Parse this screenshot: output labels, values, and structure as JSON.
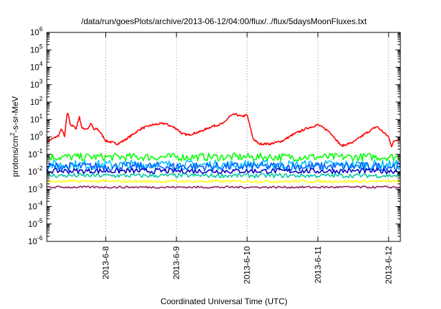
{
  "chart_data": {
    "type": "line",
    "title": "/data/run/goesPlots/archive/2013-06-12/04:00/flux/../flux/5daysMoonFluxes.txt",
    "xlabel": "Coordinated Universal Time (UTC)",
    "ylabel": {
      "pre": "protons/cm",
      "sup": "2",
      "post": "-s-sr-MeV"
    },
    "yscale": "log",
    "ylim": [
      1e-06,
      1000000.0
    ],
    "y_ticks": [
      {
        "base": "10",
        "exp": "-6"
      },
      {
        "base": "10",
        "exp": "-5"
      },
      {
        "base": "10",
        "exp": "-4"
      },
      {
        "base": "10",
        "exp": "-3"
      },
      {
        "base": "10",
        "exp": "-2"
      },
      {
        "base": "10",
        "exp": "-1"
      },
      {
        "base": "10",
        "exp": "0"
      },
      {
        "base": "10",
        "exp": "1"
      },
      {
        "base": "10",
        "exp": "2"
      },
      {
        "base": "10",
        "exp": "3"
      },
      {
        "base": "10",
        "exp": "4"
      },
      {
        "base": "10",
        "exp": "5"
      },
      {
        "base": "10",
        "exp": "6"
      }
    ],
    "x_range": [
      "2013-06-07 04:00",
      "2013-06-12 04:00"
    ],
    "x_ticks": [
      "2013-6-8",
      "2013-6-9",
      "2013-6-10",
      "2013-6-11",
      "2013-6-12"
    ],
    "x_tick_dates": [
      "2013-06-08",
      "2013-06-09",
      "2013-06-10",
      "2013-06-11",
      "2013-06-12"
    ],
    "grid": "vertical dotted at day ticks",
    "series": [
      {
        "color": "#ff0000",
        "x": [
          "2013-06-07 04:00",
          "2013-06-07 06:00",
          "2013-06-07 08:00",
          "2013-06-07 09:00",
          "2013-06-07 10:00",
          "2013-06-07 11:00",
          "2013-06-07 12:00",
          "2013-06-07 13:00",
          "2013-06-07 14:00",
          "2013-06-07 15:00",
          "2013-06-07 16:00",
          "2013-06-07 18:00",
          "2013-06-07 19:00",
          "2013-06-07 20:00",
          "2013-06-07 21:00",
          "2013-06-07 22:00",
          "2013-06-08 00:00",
          "2013-06-08 04:00",
          "2013-06-08 06:00",
          "2013-06-08 08:00",
          "2013-06-08 12:00",
          "2013-06-08 16:00",
          "2013-06-08 20:00",
          "2013-06-09 00:00",
          "2013-06-09 02:00",
          "2013-06-09 04:00",
          "2013-06-09 08:00",
          "2013-06-09 12:00",
          "2013-06-09 16:00",
          "2013-06-09 18:00",
          "2013-06-09 20:00",
          "2013-06-09 22:00",
          "2013-06-10 00:00",
          "2013-06-10 02:00",
          "2013-06-10 04:00",
          "2013-06-10 08:00",
          "2013-06-10 12:00",
          "2013-06-10 16:00",
          "2013-06-10 20:00",
          "2013-06-11 00:00",
          "2013-06-11 04:00",
          "2013-06-11 08:00",
          "2013-06-11 12:00",
          "2013-06-11 16:00",
          "2013-06-11 20:00",
          "2013-06-12 00:00",
          "2013-06-12 01:00",
          "2013-06-12 02:00",
          "2013-06-12 04:00"
        ],
        "y": [
          0.5,
          0.8,
          1.2,
          3,
          1,
          30,
          5,
          4,
          3,
          15,
          3,
          3,
          6,
          2.5,
          3,
          2,
          0.6,
          0.4,
          0.6,
          1,
          3,
          5,
          6,
          3,
          1.5,
          1.3,
          2,
          4,
          6,
          15,
          20,
          15,
          18,
          0.8,
          0.4,
          0.4,
          0.6,
          1.5,
          3,
          5,
          2,
          0.3,
          0.5,
          1.5,
          4,
          1,
          0.3,
          0.6,
          0.8
        ]
      },
      {
        "color": "#00ff00",
        "x": [
          "2013-06-07 04:00",
          "2013-06-12 04:00"
        ],
        "y": [
          0.07,
          0.07
        ],
        "jitter": 0.45
      },
      {
        "color": "#00c0ff",
        "x": [
          "2013-06-07 04:00",
          "2013-06-12 04:00"
        ],
        "y": [
          0.025,
          0.025
        ],
        "jitter": 0.55
      },
      {
        "color": "#0060ff",
        "x": [
          "2013-06-07 04:00",
          "2013-06-12 04:00"
        ],
        "y": [
          0.02,
          0.02
        ],
        "jitter": 0.5
      },
      {
        "color": "#0000c0",
        "x": [
          "2013-06-07 04:00",
          "2013-06-12 04:00"
        ],
        "y": [
          0.011,
          0.011
        ],
        "jitter": 0.3
      },
      {
        "color": "#00c8a0",
        "x": [
          "2013-06-07 04:00",
          "2013-06-12 04:00"
        ],
        "y": [
          0.006,
          0.006
        ],
        "jitter": 0.25
      },
      {
        "color": "#ffff00",
        "x": [
          "2013-06-07 04:00",
          "2013-06-12 04:00"
        ],
        "y": [
          0.0028,
          0.0028
        ],
        "jitter": 0.15
      },
      {
        "color": "#8b1a5a",
        "x": [
          "2013-06-07 04:00",
          "2013-06-12 04:00"
        ],
        "y": [
          0.0013,
          0.0013
        ],
        "jitter": 0.12
      }
    ]
  }
}
